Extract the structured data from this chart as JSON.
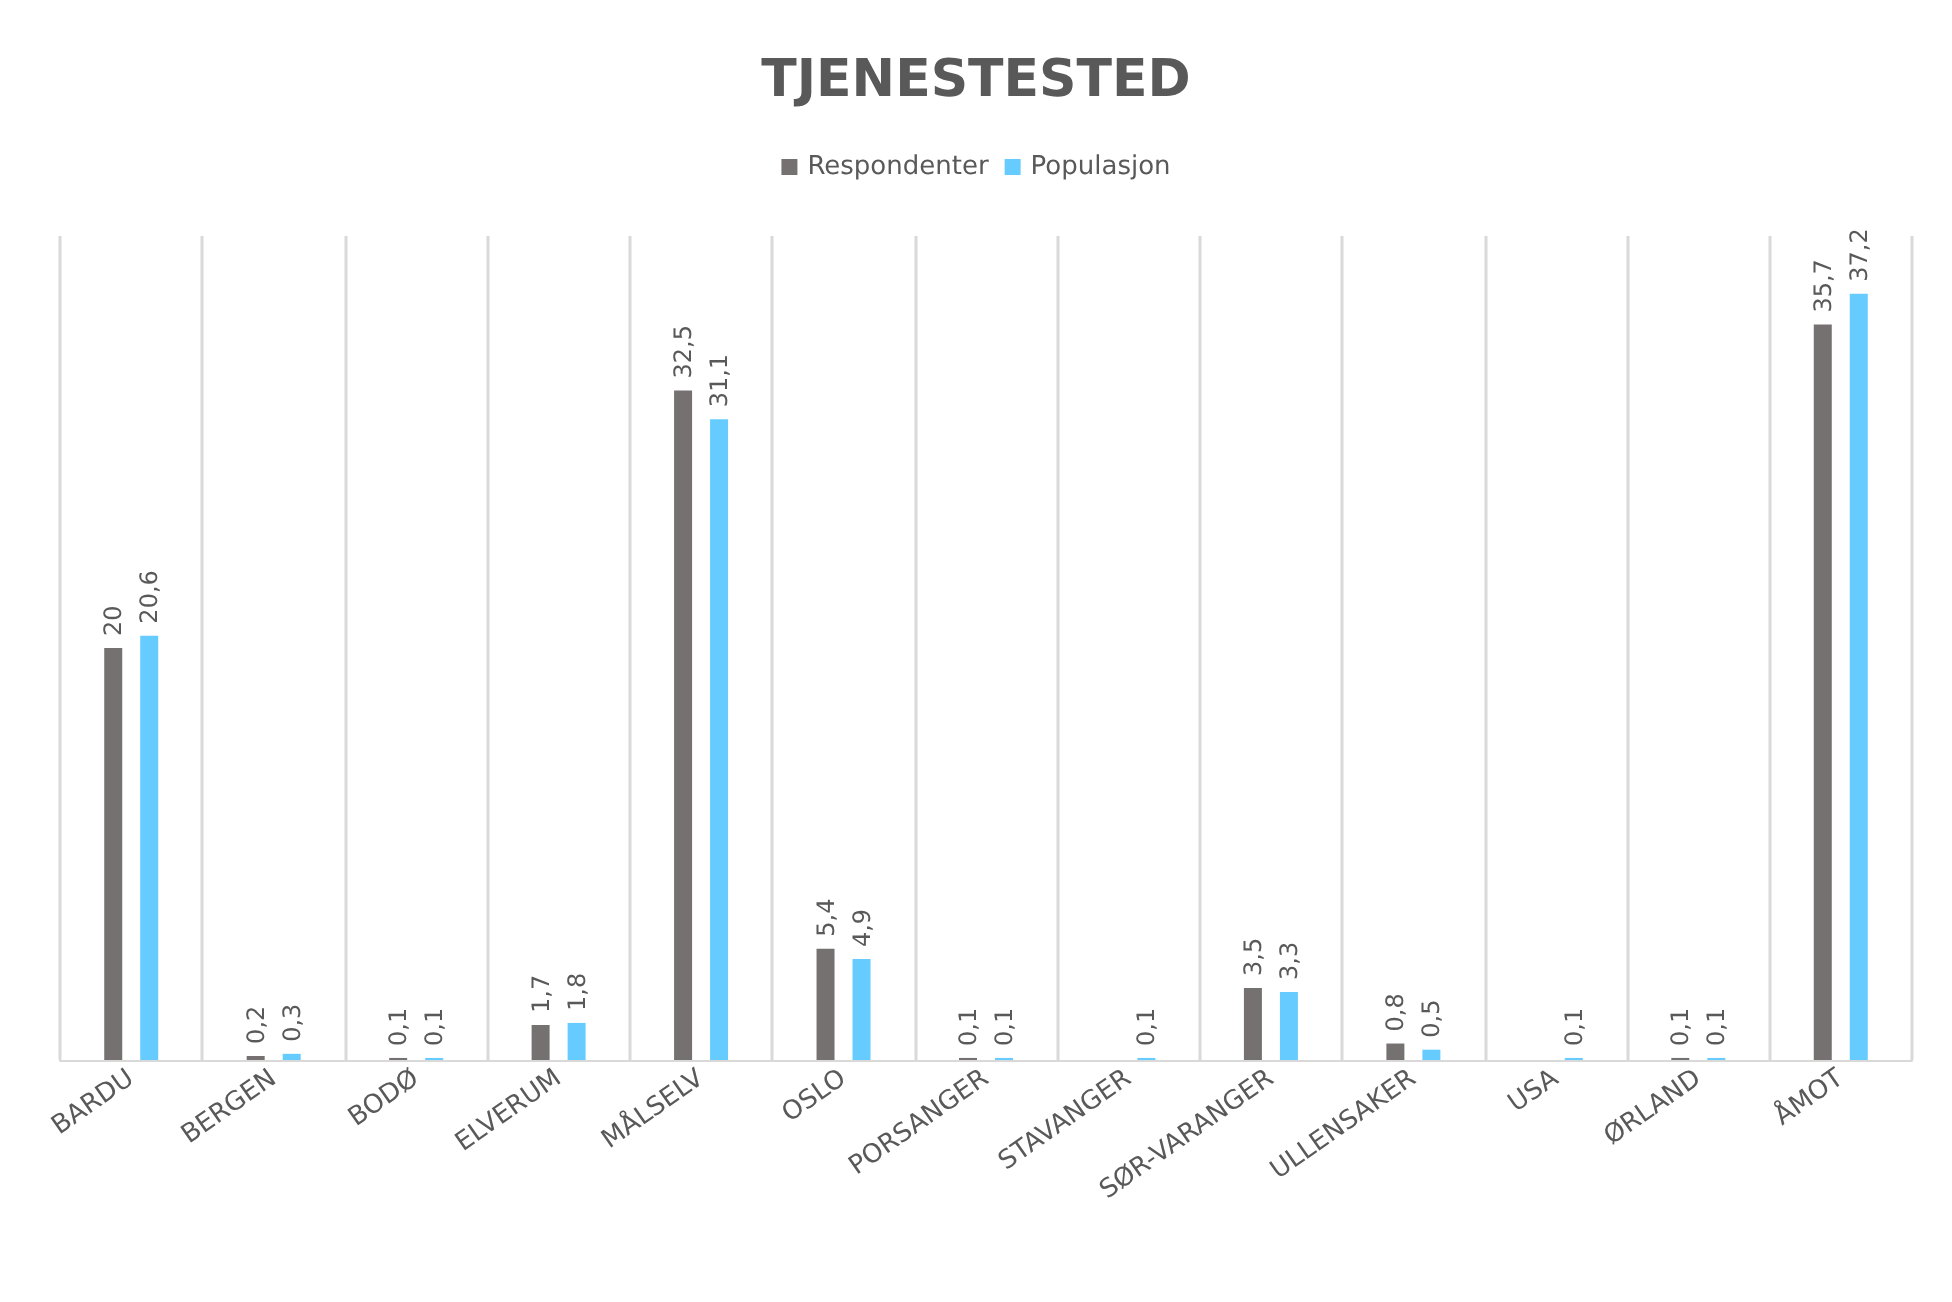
{
  "chart_data": {
    "type": "bar",
    "title": "TJENESTESTED",
    "categories": [
      "BARDU",
      "BERGEN",
      "BODØ",
      "ELVERUM",
      "MÅLSELV",
      "OSLO",
      "PORSANGER",
      "STAVANGER",
      "SØR-VARANGER",
      "ULLENSAKER",
      "USA",
      "ØRLAND",
      "ÅMOT"
    ],
    "series": [
      {
        "name": "Respondenter",
        "color": "#767171",
        "values": [
          20,
          0.2,
          0.1,
          1.7,
          32.5,
          5.4,
          0.1,
          null,
          3.5,
          0.8,
          null,
          0.1,
          35.7
        ],
        "value_labels": [
          "20",
          "0,2",
          "0,1",
          "1,7",
          "32,5",
          "5,4",
          "0,1",
          null,
          "3,5",
          "0,8",
          null,
          "0,1",
          "35,7"
        ]
      },
      {
        "name": "Populasjon",
        "color": "#66ccff",
        "values": [
          20.6,
          0.3,
          0.1,
          1.8,
          31.1,
          4.9,
          0.1,
          0.1,
          3.3,
          0.5,
          0.1,
          0.1,
          37.2
        ],
        "value_labels": [
          "20,6",
          "0,3",
          "0,1",
          "1,8",
          "31,1",
          "4,9",
          "0,1",
          "0,1",
          "3,3",
          "0,5",
          "0,1",
          "0,1",
          "37,2"
        ]
      }
    ],
    "legend": "top",
    "grid": "x"
  }
}
